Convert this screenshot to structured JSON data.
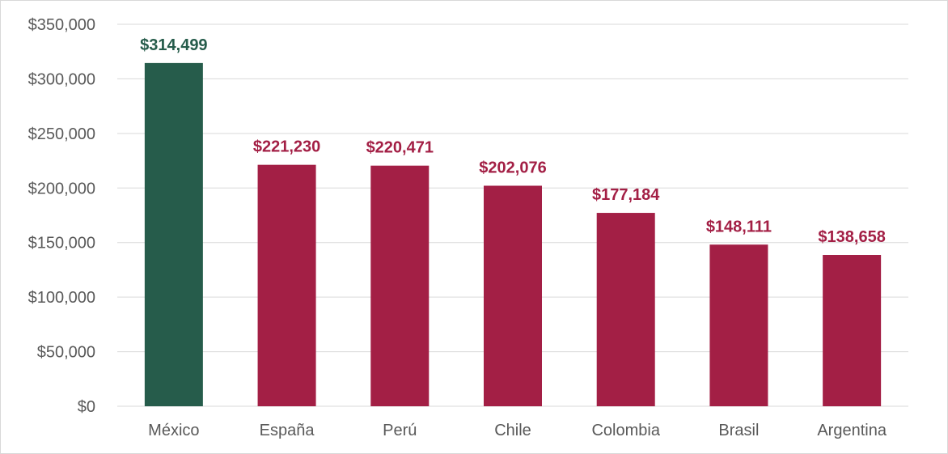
{
  "chart_data": {
    "type": "bar",
    "categories": [
      "México",
      "España",
      "Perú",
      "Chile",
      "Colombia",
      "Brasil",
      "Argentina"
    ],
    "values": [
      314499,
      221230,
      220471,
      202076,
      177184,
      148111,
      138658
    ],
    "data_labels": [
      "$314,499",
      "$221,230",
      "$220,471",
      "$202,076",
      "$177,184",
      "$148,111",
      "$138,658"
    ],
    "y_ticks": [
      0,
      50000,
      100000,
      150000,
      200000,
      250000,
      300000,
      350000
    ],
    "y_tick_labels": [
      "$0",
      "$50,000",
      "$100,000",
      "$150,000",
      "$200,000",
      "$250,000",
      "$300,000",
      "$350,000"
    ],
    "ylim": [
      0,
      350000
    ],
    "title": "",
    "xlabel": "",
    "ylabel": "",
    "grid": true,
    "legend": "none",
    "colors": {
      "highlight": "#265c4b",
      "default": "#a31f45",
      "gridline": "#d9d9d9",
      "tick_text": "#595959"
    },
    "highlight_index": 0
  }
}
